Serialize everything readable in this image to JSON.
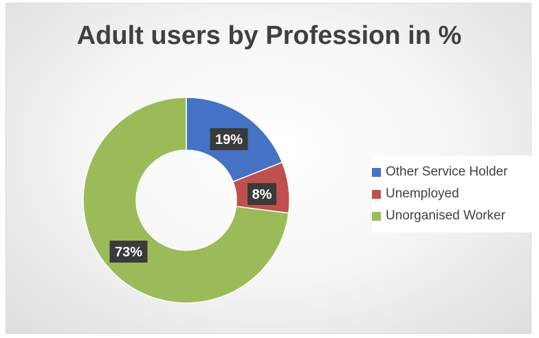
{
  "chart_data": {
    "type": "donut",
    "title": "Adult users by Profession in %",
    "categories": [
      "Other Service Holder",
      "Unemployed",
      "Unorganised Worker"
    ],
    "values": [
      19,
      8,
      73
    ],
    "data_labels": [
      "19%",
      "8%",
      "73%"
    ],
    "colors": [
      "#4472c4",
      "#c0504d",
      "#9bbb59"
    ],
    "legend_position": "right"
  }
}
